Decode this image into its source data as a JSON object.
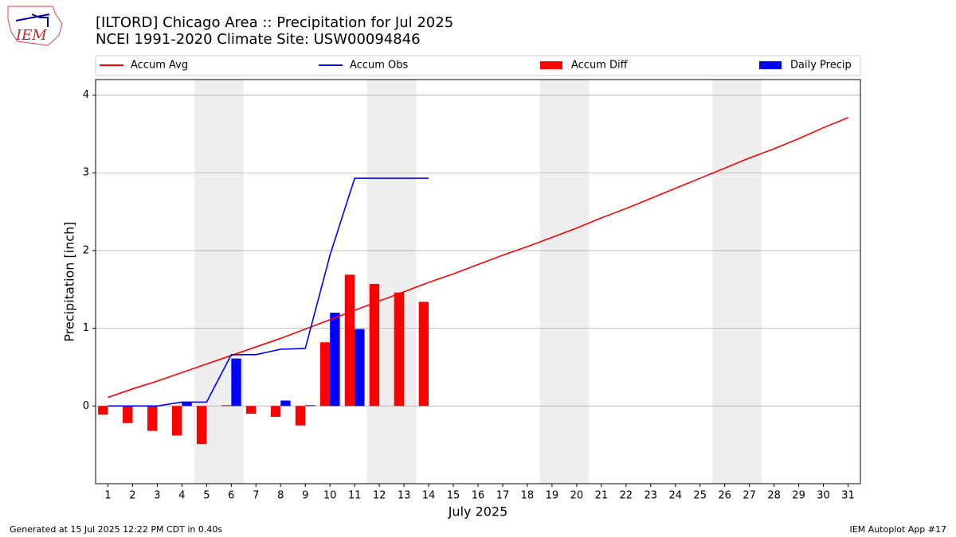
{
  "logo": "IEM",
  "footer_left": "Generated at 15 Jul 2025 12:22 PM CDT in 0.40s",
  "footer_right": "IEM Autoplot App #17",
  "chart_data": {
    "type": "combo",
    "title": "[ILTORD] Chicago Area :: Precipitation for Jul 2025",
    "subtitle": "NCEI 1991-2020 Climate Site: USW00094846",
    "xlabel": "July 2025",
    "ylabel": "Precipitation [inch]",
    "x": [
      1,
      2,
      3,
      4,
      5,
      6,
      7,
      8,
      9,
      10,
      11,
      12,
      13,
      14,
      15,
      16,
      17,
      18,
      19,
      20,
      21,
      22,
      23,
      24,
      25,
      26,
      27,
      28,
      29,
      30,
      31
    ],
    "xlim": [
      0.5,
      31.5
    ],
    "xticks": [
      1,
      2,
      3,
      4,
      5,
      6,
      7,
      8,
      9,
      10,
      11,
      12,
      13,
      14,
      15,
      16,
      17,
      18,
      19,
      20,
      21,
      22,
      23,
      24,
      25,
      26,
      27,
      28,
      29,
      30,
      31
    ],
    "ylim": [
      -1,
      4.2
    ],
    "yticks": [
      0,
      1,
      2,
      3,
      4
    ],
    "grid": true,
    "shaded_spans": [
      [
        4.5,
        6.5
      ],
      [
        11.5,
        13.5
      ],
      [
        18.5,
        20.5
      ],
      [
        25.5,
        27.5
      ]
    ],
    "shade_color": "#eeeeee",
    "legend": "top",
    "series": [
      {
        "name": "Accum Avg",
        "kind": "line",
        "color": "#ff0000",
        "values": [
          0.11,
          0.22,
          0.32,
          0.43,
          0.54,
          0.65,
          0.76,
          0.87,
          0.99,
          1.11,
          1.23,
          1.35,
          1.47,
          1.59,
          1.7,
          1.82,
          1.94,
          2.05,
          2.17,
          2.29,
          2.42,
          2.54,
          2.67,
          2.8,
          2.93,
          3.06,
          3.19,
          3.31,
          3.44,
          3.58,
          3.71
        ]
      },
      {
        "name": "Accum Obs",
        "kind": "line",
        "color": "#0000ff",
        "values": [
          0,
          0,
          0,
          0.05,
          0.05,
          0.66,
          0.66,
          0.73,
          0.74,
          1.94,
          2.93,
          2.93,
          2.93,
          2.93,
          null,
          null,
          null,
          null,
          null,
          null,
          null,
          null,
          null,
          null,
          null,
          null,
          null,
          null,
          null,
          null,
          null
        ]
      },
      {
        "name": "Accum Diff",
        "kind": "bar",
        "color": "#ff0000",
        "values": [
          -0.11,
          -0.22,
          -0.32,
          -0.38,
          -0.49,
          0.01,
          -0.1,
          -0.14,
          -0.25,
          0.82,
          1.69,
          1.57,
          1.46,
          1.34,
          null,
          null,
          null,
          null,
          null,
          null,
          null,
          null,
          null,
          null,
          null,
          null,
          null,
          null,
          null,
          null,
          null
        ]
      },
      {
        "name": "Daily Precip",
        "kind": "bar",
        "color": "#0000ff",
        "values": [
          0,
          0,
          0,
          0.05,
          0,
          0.61,
          0,
          0.07,
          0.01,
          1.2,
          0.99,
          0,
          0,
          0,
          null,
          null,
          null,
          null,
          null,
          null,
          null,
          null,
          null,
          null,
          null,
          null,
          null,
          null,
          null,
          null,
          null
        ]
      }
    ]
  }
}
